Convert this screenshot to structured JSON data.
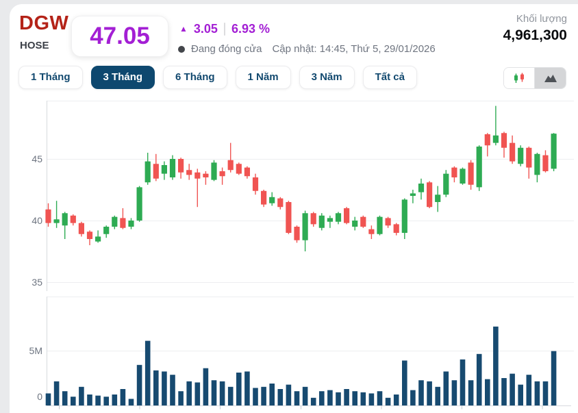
{
  "header": {
    "symbol": "DGW",
    "exchange": "HOSE",
    "price": "47.05",
    "arrow": "▲",
    "change": "3.05",
    "change_pct": "6.93 %",
    "status": "Đang đóng cửa",
    "updated": "Cập nhật: 14:45, Thứ 5, 29/01/2026",
    "volume_label": "Khối lượng",
    "volume_value": "4,961,300",
    "ceiling_accent_color": "#A31FD4",
    "symbol_color": "#B42318"
  },
  "tabs": [
    {
      "key": "1m",
      "label": "1 Tháng",
      "active": false
    },
    {
      "key": "3m",
      "label": "3 Tháng",
      "active": true
    },
    {
      "key": "6m",
      "label": "6 Tháng",
      "active": false
    },
    {
      "key": "1y",
      "label": "1 Năm",
      "active": false
    },
    {
      "key": "3y",
      "label": "3 Năm",
      "active": false
    },
    {
      "key": "all",
      "label": "Tất cả",
      "active": false
    }
  ],
  "chart_toggle": {
    "options": [
      "candlestick",
      "area"
    ],
    "selected": "candlestick"
  },
  "chart_data": {
    "type": "candlestick",
    "symbol": "DGW",
    "range": "3 Tháng",
    "legend_position": "none",
    "grid": true,
    "price_axis": {
      "ticks": [
        45,
        40,
        35
      ],
      "range": [
        34.3,
        49.7
      ]
    },
    "volume_axis": {
      "tick_labels": [
        "5M",
        "0"
      ],
      "ticks_millions": [
        5,
        0
      ],
      "range_millions": [
        0,
        9.7
      ]
    },
    "colors": {
      "up": "#2EAB53",
      "down": "#F05452",
      "volume": "#174A70"
    },
    "candles_ohlcv_volM": [
      [
        40.9,
        41.4,
        39.5,
        39.8,
        1.1
      ],
      [
        39.8,
        41.6,
        39.4,
        40.1,
        2.2
      ],
      [
        39.6,
        40.7,
        38.5,
        40.6,
        1.3
      ],
      [
        40.4,
        40.5,
        39.6,
        39.8,
        0.8
      ],
      [
        39.8,
        39.9,
        38.7,
        38.9,
        1.7
      ],
      [
        39.1,
        39.2,
        38.0,
        38.5,
        1.0
      ],
      [
        38.3,
        39.2,
        38.2,
        38.7,
        0.9
      ],
      [
        38.9,
        39.6,
        38.6,
        39.5,
        0.8
      ],
      [
        39.5,
        40.4,
        39.3,
        40.3,
        1.0
      ],
      [
        40.2,
        41.0,
        39.3,
        39.4,
        1.5
      ],
      [
        39.5,
        40.2,
        39.3,
        40.0,
        0.6
      ],
      [
        40.0,
        42.8,
        39.9,
        42.7,
        3.7
      ],
      [
        43.1,
        45.5,
        42.9,
        44.8,
        5.9
      ],
      [
        44.6,
        45.4,
        43.2,
        43.4,
        3.2
      ],
      [
        43.8,
        44.8,
        43.3,
        44.5,
        3.1
      ],
      [
        43.5,
        45.3,
        43.3,
        45.0,
        2.8
      ],
      [
        45.0,
        45.1,
        43.4,
        43.9,
        1.3
      ],
      [
        44.1,
        44.6,
        43.3,
        43.7,
        2.2
      ],
      [
        43.9,
        44.2,
        41.1,
        43.4,
        2.1
      ],
      [
        43.8,
        44.0,
        42.9,
        43.5,
        3.4
      ],
      [
        43.3,
        44.9,
        43.2,
        44.7,
        2.3
      ],
      [
        44.0,
        44.3,
        42.9,
        43.6,
        2.2
      ],
      [
        44.9,
        46.3,
        43.9,
        44.1,
        1.7
      ],
      [
        44.6,
        44.7,
        43.7,
        43.8,
        3.0
      ],
      [
        44.3,
        44.4,
        43.4,
        43.6,
        3.1
      ],
      [
        43.5,
        43.8,
        42.1,
        42.4,
        1.6
      ],
      [
        42.4,
        42.5,
        41.1,
        41.3,
        1.7
      ],
      [
        41.4,
        42.3,
        41.2,
        41.9,
        2.0
      ],
      [
        41.8,
        41.9,
        40.9,
        41.1,
        1.5
      ],
      [
        41.5,
        41.6,
        38.9,
        39.0,
        1.9
      ],
      [
        39.5,
        39.6,
        38.2,
        38.4,
        1.3
      ],
      [
        38.4,
        40.8,
        37.5,
        40.6,
        1.7
      ],
      [
        40.6,
        40.7,
        39.5,
        39.7,
        0.7
      ],
      [
        39.4,
        40.6,
        39.2,
        40.4,
        1.3
      ],
      [
        39.9,
        40.4,
        39.4,
        40.2,
        1.4
      ],
      [
        39.9,
        40.7,
        39.7,
        40.6,
        1.2
      ],
      [
        41.0,
        41.1,
        39.7,
        39.8,
        1.5
      ],
      [
        39.5,
        40.3,
        39.2,
        40.0,
        1.3
      ],
      [
        40.3,
        40.4,
        39.4,
        39.5,
        1.2
      ],
      [
        39.3,
        39.6,
        38.5,
        38.9,
        1.1
      ],
      [
        38.9,
        40.4,
        38.8,
        40.3,
        1.3
      ],
      [
        40.2,
        40.3,
        39.4,
        39.6,
        0.7
      ],
      [
        39.7,
        39.8,
        38.8,
        39.0,
        1.0
      ],
      [
        39.0,
        41.8,
        38.5,
        41.7,
        4.1
      ],
      [
        42.0,
        42.5,
        41.4,
        42.2,
        1.4
      ],
      [
        42.3,
        43.4,
        41.7,
        43.0,
        2.3
      ],
      [
        43.1,
        43.2,
        41.0,
        41.1,
        2.2
      ],
      [
        41.5,
        42.8,
        40.7,
        42.1,
        1.7
      ],
      [
        42.1,
        44.1,
        41.9,
        43.8,
        3.1
      ],
      [
        44.3,
        44.4,
        43.1,
        43.5,
        2.3
      ],
      [
        43.0,
        44.3,
        42.9,
        44.2,
        4.2
      ],
      [
        44.7,
        44.9,
        42.5,
        42.9,
        2.3
      ],
      [
        42.7,
        46.1,
        42.4,
        46.0,
        4.7
      ],
      [
        47.0,
        47.1,
        45.2,
        46.1,
        2.4
      ],
      [
        46.3,
        49.3,
        46.1,
        46.9,
        7.2
      ],
      [
        47.1,
        47.2,
        45.1,
        45.9,
        2.5
      ],
      [
        46.3,
        46.9,
        44.6,
        44.8,
        2.9
      ],
      [
        44.6,
        46.1,
        44.4,
        45.9,
        1.9
      ],
      [
        45.9,
        46.0,
        43.4,
        44.3,
        2.8
      ],
      [
        43.7,
        45.5,
        43.1,
        45.4,
        2.2
      ],
      [
        45.3,
        45.7,
        43.9,
        44.0,
        2.2
      ],
      [
        44.2,
        47.1,
        44.0,
        47.05,
        4.96
      ]
    ]
  }
}
